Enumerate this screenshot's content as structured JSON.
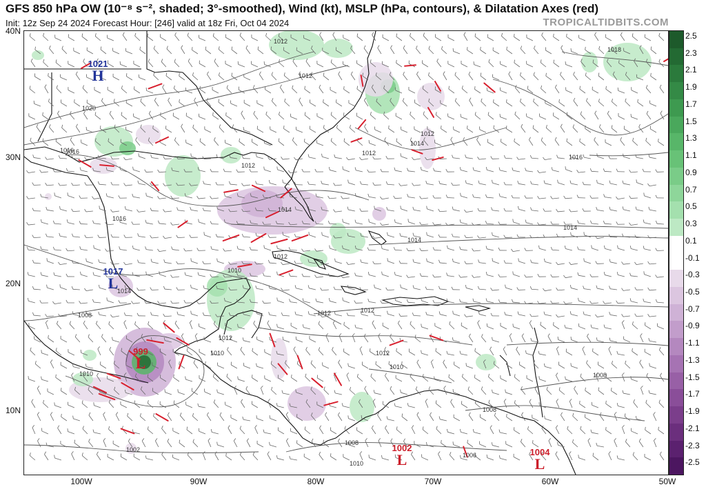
{
  "header": {
    "title": "GFS 850 hPa OW (10⁻⁸ s⁻², shaded; 3°-smoothed), Wind (kt), MSLP (hPa, contours), & Dilatation Axes (red)",
    "subtitle": "Init: 12z Sep 24 2024   Forecast Hour: [246]   valid at 18z Fri, Oct 04 2024",
    "credit": "TROPICALTIDBITS.COM"
  },
  "axes": {
    "lat_labels": [
      "40N",
      "30N",
      "20N",
      "10N"
    ],
    "lon_labels": [
      "100W",
      "90W",
      "80W",
      "70W",
      "60W",
      "50W"
    ]
  },
  "colorbar": {
    "labels": [
      "2.5",
      "2.3",
      "2.1",
      "1.9",
      "1.7",
      "1.5",
      "1.3",
      "1.1",
      "0.9",
      "0.7",
      "0.5",
      "0.3",
      "0.1",
      "-0.1",
      "-0.3",
      "-0.5",
      "-0.7",
      "-0.9",
      "-1.1",
      "-1.3",
      "-1.5",
      "-1.7",
      "-1.9",
      "-2.1",
      "-2.3",
      "-2.5"
    ],
    "colors": [
      "#1d5a2b",
      "#236a33",
      "#2b7a3c",
      "#348a46",
      "#3e9a50",
      "#4aa85c",
      "#58b669",
      "#68c277",
      "#7acc88",
      "#8ed69a",
      "#a4e0ae",
      "#bde9c4",
      "#ffffff",
      "#ffffff",
      "#e8daea",
      "#dcc6e0",
      "#cfb2d6",
      "#c29dcb",
      "#b488bf",
      "#a673b3",
      "#9860a6",
      "#8a4e99",
      "#7b3e8b",
      "#6b2f7d",
      "#5b216f",
      "#4c1660"
    ]
  },
  "pressure_centers": [
    {
      "type": "H",
      "value": "1021",
      "color": "#22349a"
    },
    {
      "type": "L",
      "value": "1017",
      "color": "#22349a"
    },
    {
      "type": "L",
      "value": "999",
      "color": "#cc1f2b"
    },
    {
      "type": "L",
      "value": "1002",
      "color": "#cc1f2b"
    },
    {
      "type": "L",
      "value": "1004",
      "color": "#cc1f2b"
    }
  ],
  "isobar_labels": [
    "1012",
    "1012",
    "1012",
    "1012",
    "1012",
    "1012",
    "1012",
    "1012",
    "1012",
    "1012",
    "1016",
    "1016",
    "1016",
    "1016",
    "1018",
    "1020",
    "1014",
    "1014",
    "1014",
    "1014",
    "1014",
    "1010",
    "1010",
    "1010",
    "1010",
    "1010",
    "1008",
    "1008",
    "1008",
    "1008",
    "1006",
    "1002"
  ]
}
